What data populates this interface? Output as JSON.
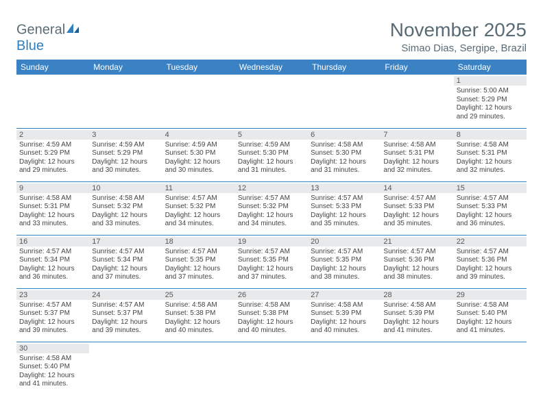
{
  "brand": {
    "name_a": "General",
    "name_b": "Blue"
  },
  "title": "November 2025",
  "location": "Simao Dias, Sergipe, Brazil",
  "colors": {
    "header_bg": "#3b82c4",
    "header_text": "#ffffff",
    "daynum_bg": "#e7e9eb",
    "rule": "#2f7fbf",
    "text_muted": "#5a6b75"
  },
  "weekdays": [
    "Sunday",
    "Monday",
    "Tuesday",
    "Wednesday",
    "Thursday",
    "Friday",
    "Saturday"
  ],
  "weeks": [
    [
      null,
      null,
      null,
      null,
      null,
      null,
      {
        "n": "1",
        "sunrise": "5:00 AM",
        "sunset": "5:29 PM",
        "daylight": "12 hours and 29 minutes."
      }
    ],
    [
      {
        "n": "2",
        "sunrise": "4:59 AM",
        "sunset": "5:29 PM",
        "daylight": "12 hours and 29 minutes."
      },
      {
        "n": "3",
        "sunrise": "4:59 AM",
        "sunset": "5:29 PM",
        "daylight": "12 hours and 30 minutes."
      },
      {
        "n": "4",
        "sunrise": "4:59 AM",
        "sunset": "5:30 PM",
        "daylight": "12 hours and 30 minutes."
      },
      {
        "n": "5",
        "sunrise": "4:59 AM",
        "sunset": "5:30 PM",
        "daylight": "12 hours and 31 minutes."
      },
      {
        "n": "6",
        "sunrise": "4:58 AM",
        "sunset": "5:30 PM",
        "daylight": "12 hours and 31 minutes."
      },
      {
        "n": "7",
        "sunrise": "4:58 AM",
        "sunset": "5:31 PM",
        "daylight": "12 hours and 32 minutes."
      },
      {
        "n": "8",
        "sunrise": "4:58 AM",
        "sunset": "5:31 PM",
        "daylight": "12 hours and 32 minutes."
      }
    ],
    [
      {
        "n": "9",
        "sunrise": "4:58 AM",
        "sunset": "5:31 PM",
        "daylight": "12 hours and 33 minutes."
      },
      {
        "n": "10",
        "sunrise": "4:58 AM",
        "sunset": "5:32 PM",
        "daylight": "12 hours and 33 minutes."
      },
      {
        "n": "11",
        "sunrise": "4:57 AM",
        "sunset": "5:32 PM",
        "daylight": "12 hours and 34 minutes."
      },
      {
        "n": "12",
        "sunrise": "4:57 AM",
        "sunset": "5:32 PM",
        "daylight": "12 hours and 34 minutes."
      },
      {
        "n": "13",
        "sunrise": "4:57 AM",
        "sunset": "5:33 PM",
        "daylight": "12 hours and 35 minutes."
      },
      {
        "n": "14",
        "sunrise": "4:57 AM",
        "sunset": "5:33 PM",
        "daylight": "12 hours and 35 minutes."
      },
      {
        "n": "15",
        "sunrise": "4:57 AM",
        "sunset": "5:33 PM",
        "daylight": "12 hours and 36 minutes."
      }
    ],
    [
      {
        "n": "16",
        "sunrise": "4:57 AM",
        "sunset": "5:34 PM",
        "daylight": "12 hours and 36 minutes."
      },
      {
        "n": "17",
        "sunrise": "4:57 AM",
        "sunset": "5:34 PM",
        "daylight": "12 hours and 37 minutes."
      },
      {
        "n": "18",
        "sunrise": "4:57 AM",
        "sunset": "5:35 PM",
        "daylight": "12 hours and 37 minutes."
      },
      {
        "n": "19",
        "sunrise": "4:57 AM",
        "sunset": "5:35 PM",
        "daylight": "12 hours and 37 minutes."
      },
      {
        "n": "20",
        "sunrise": "4:57 AM",
        "sunset": "5:35 PM",
        "daylight": "12 hours and 38 minutes."
      },
      {
        "n": "21",
        "sunrise": "4:57 AM",
        "sunset": "5:36 PM",
        "daylight": "12 hours and 38 minutes."
      },
      {
        "n": "22",
        "sunrise": "4:57 AM",
        "sunset": "5:36 PM",
        "daylight": "12 hours and 39 minutes."
      }
    ],
    [
      {
        "n": "23",
        "sunrise": "4:57 AM",
        "sunset": "5:37 PM",
        "daylight": "12 hours and 39 minutes."
      },
      {
        "n": "24",
        "sunrise": "4:57 AM",
        "sunset": "5:37 PM",
        "daylight": "12 hours and 39 minutes."
      },
      {
        "n": "25",
        "sunrise": "4:58 AM",
        "sunset": "5:38 PM",
        "daylight": "12 hours and 40 minutes."
      },
      {
        "n": "26",
        "sunrise": "4:58 AM",
        "sunset": "5:38 PM",
        "daylight": "12 hours and 40 minutes."
      },
      {
        "n": "27",
        "sunrise": "4:58 AM",
        "sunset": "5:39 PM",
        "daylight": "12 hours and 40 minutes."
      },
      {
        "n": "28",
        "sunrise": "4:58 AM",
        "sunset": "5:39 PM",
        "daylight": "12 hours and 41 minutes."
      },
      {
        "n": "29",
        "sunrise": "4:58 AM",
        "sunset": "5:40 PM",
        "daylight": "12 hours and 41 minutes."
      }
    ],
    [
      {
        "n": "30",
        "sunrise": "4:58 AM",
        "sunset": "5:40 PM",
        "daylight": "12 hours and 41 minutes."
      },
      null,
      null,
      null,
      null,
      null,
      null
    ]
  ],
  "labels": {
    "sunrise": "Sunrise: ",
    "sunset": "Sunset: ",
    "daylight": "Daylight: "
  }
}
